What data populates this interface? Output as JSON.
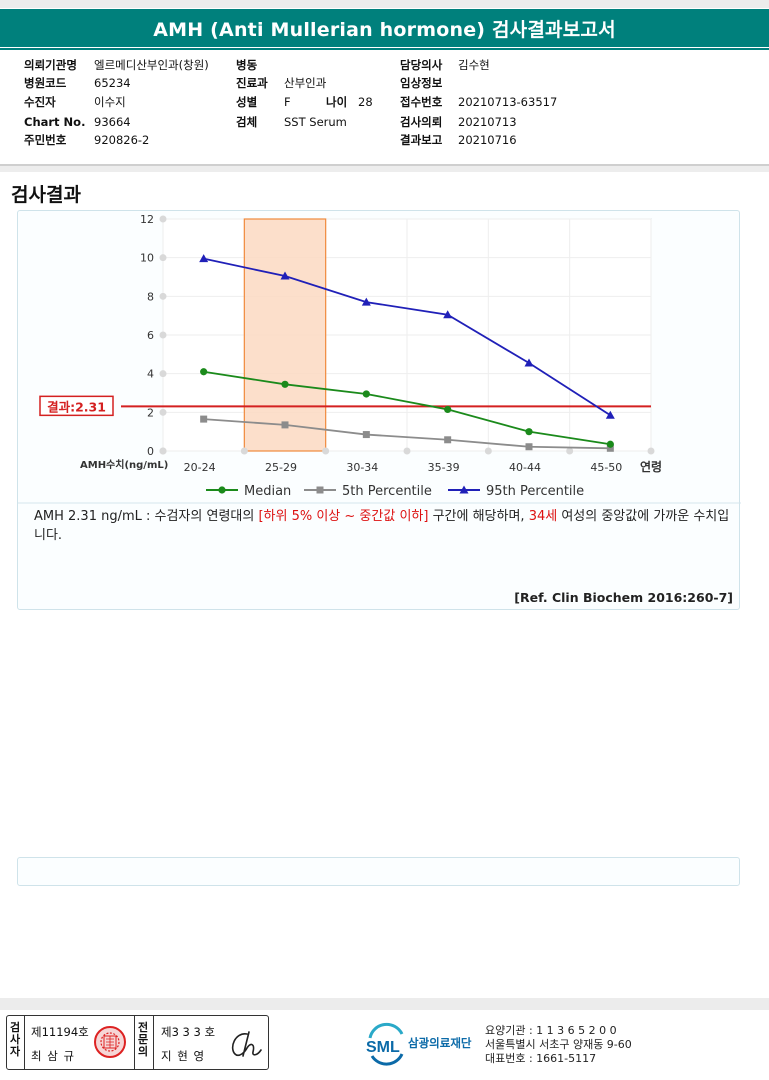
{
  "title": "AMH (Anti Mullerian hormone) 검사결과보고서",
  "info": {
    "institution_label": "의뢰기관명",
    "institution": "엘르메디산부인과(창원)",
    "hospital_code_label": "병원코드",
    "hospital_code": "65234",
    "patient_label": "수진자",
    "patient": "이수지",
    "chart_label": "Chart No.",
    "chart_no": "93664",
    "resident_label": "주민번호",
    "resident_no": "920826-2",
    "ward_label": "병동",
    "ward": "",
    "dept_label": "진료과",
    "dept": "산부인과",
    "sex_label": "성별",
    "sex": "F",
    "age_label": "나이",
    "age": "28",
    "specimen_label": "검체",
    "specimen": "SST Serum",
    "doctor_label": "담당의사",
    "doctor": "김수현",
    "clinical_label": "임상정보",
    "clinical": "",
    "receipt_label": "접수번호",
    "receipt_no": "20210713-63517",
    "request_label": "검사의뢰",
    "request_date": "20210713",
    "report_label": "결과보고",
    "report_date": "20210716"
  },
  "section_title": "검사결과",
  "chart_data": {
    "type": "line",
    "categories": [
      "20-24",
      "25-29",
      "30-34",
      "35-39",
      "40-44",
      "45-50"
    ],
    "x_end_label": "연령",
    "y_axis_label": "AMH수치(ng/mL)",
    "ylim": [
      0,
      12
    ],
    "yticks": [
      0,
      2,
      4,
      6,
      8,
      10,
      12
    ],
    "grid": true,
    "legend_position": "bottom",
    "highlight_category": "25-29",
    "result_line": {
      "value": 2.31,
      "label": "결과:2.31",
      "color": "#d42020"
    },
    "series": [
      {
        "name": "Median",
        "color": "#1b8a1b",
        "marker": "circle",
        "values": [
          4.1,
          3.45,
          2.95,
          2.15,
          1.0,
          0.35
        ]
      },
      {
        "name": "5th Percentile",
        "color": "#8c8c8c",
        "marker": "square",
        "values": [
          1.65,
          1.35,
          0.85,
          0.58,
          0.22,
          0.14
        ]
      },
      {
        "name": "95th Percentile",
        "color": "#2020b8",
        "marker": "triangle",
        "values": [
          9.95,
          9.05,
          7.7,
          7.05,
          4.55,
          1.85
        ]
      }
    ]
  },
  "description": {
    "part1": "AMH  2.31 ng/mL : 수검자의 연령대의 ",
    "part2": "[하위 5% 이상 ~ 중간값 이하]",
    "part3": "  구간에 해당하며, ",
    "part4": "34세",
    "part5": " 여성의 중앙값에 가까운 수치입니다."
  },
  "reference": "[Ref. Clin Biochem 2016:260-7]",
  "footer": {
    "examiner_label": "검사자",
    "examiner_no": "제11194호",
    "examiner_name": "최 삼 규",
    "specialist_label": "전문의",
    "specialist_no": "제3 3 3 호",
    "specialist_name": "지 현 영",
    "logo_text": "삼광의료재단",
    "org_line1": "요양기관 : 1 1 3 6 5 2 0 0",
    "org_line2": "서울특별시 서초구 양재동 9-60",
    "org_line3": "대표번호 : 1661-5117"
  }
}
